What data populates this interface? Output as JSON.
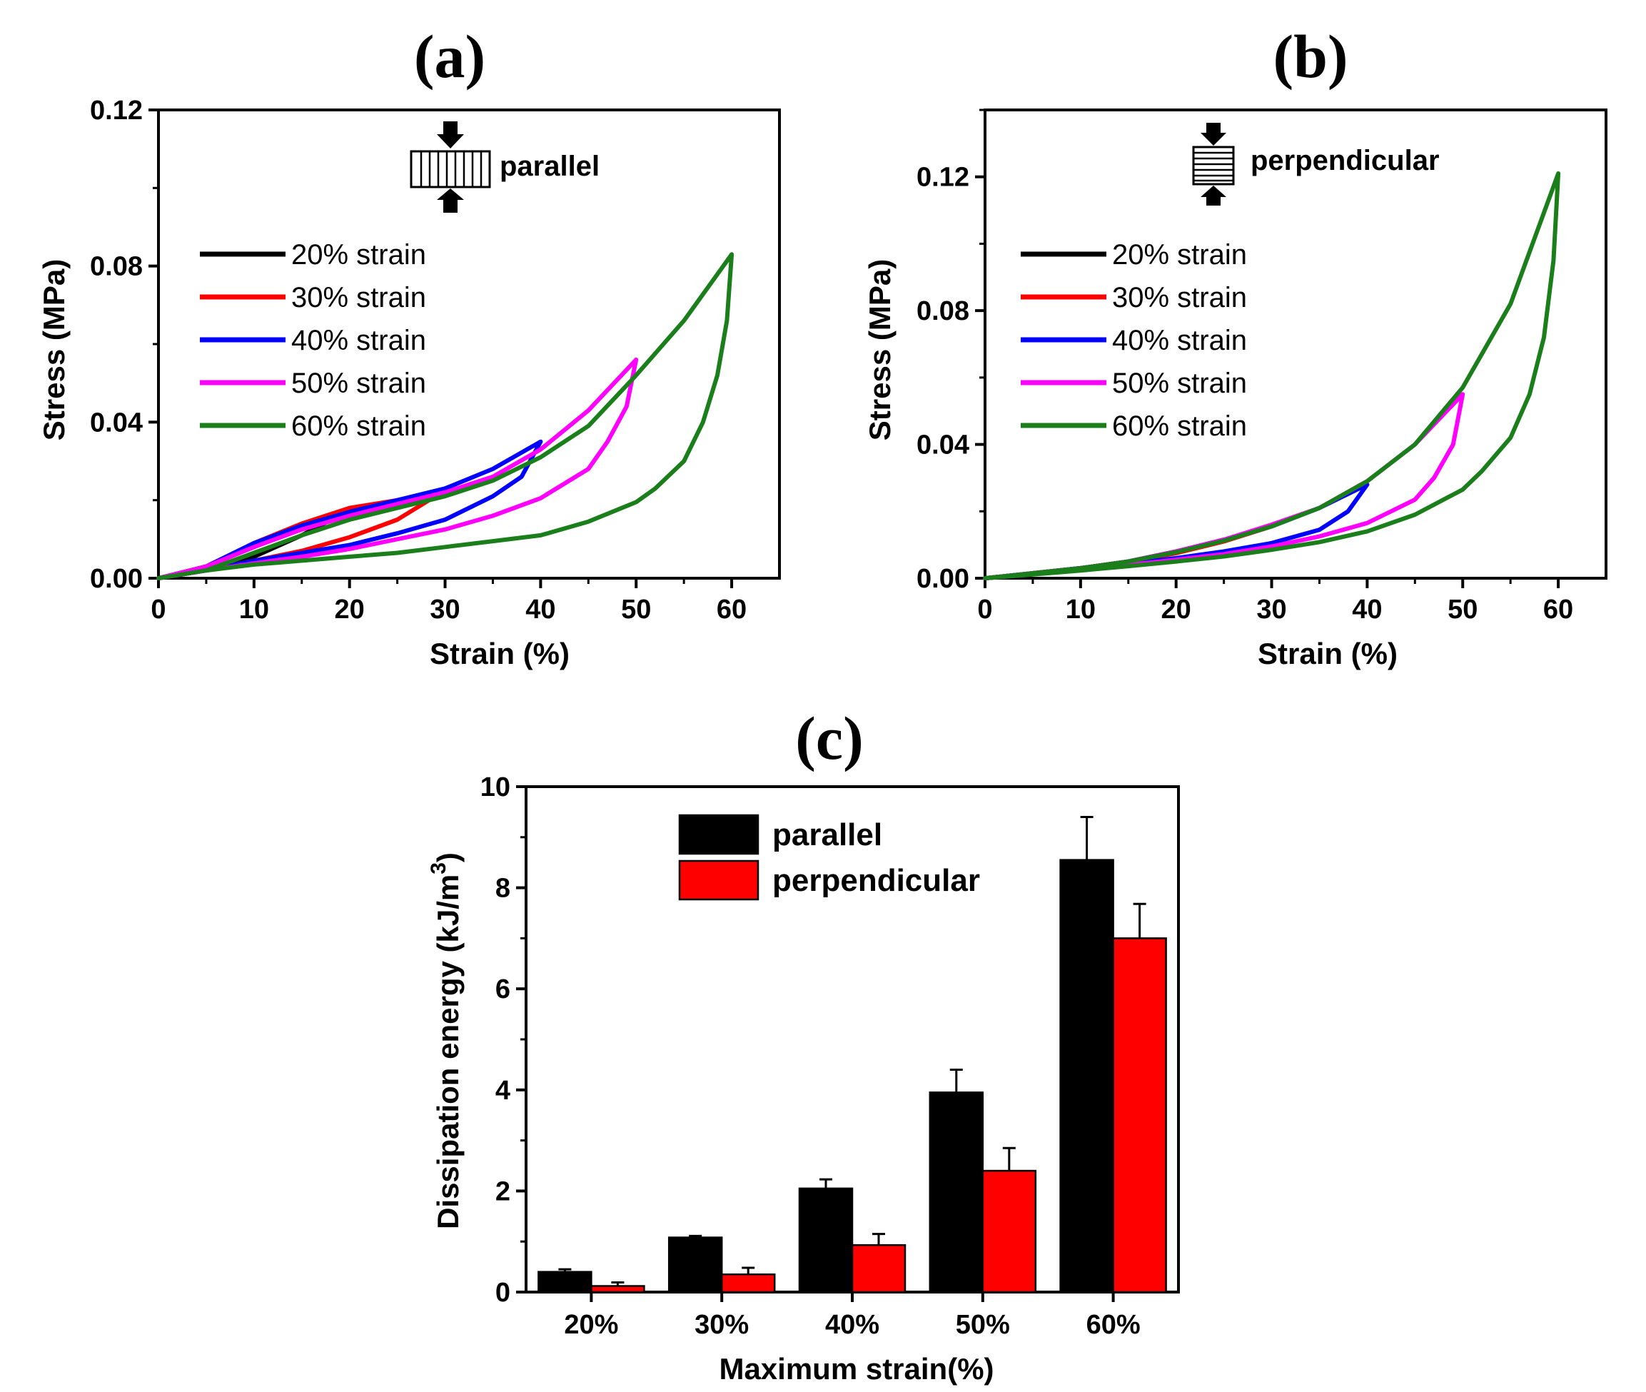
{
  "chart_data": [
    {
      "id": "a",
      "type": "line",
      "panel_label": "(a)",
      "title": "parallel",
      "xlabel": "Strain (%)",
      "ylabel": "Stress (MPa)",
      "xlim": [
        0,
        65
      ],
      "ylim": [
        0,
        0.12
      ],
      "xticks": [
        0,
        10,
        20,
        30,
        40,
        50,
        60
      ],
      "yticks": [
        0.0,
        0.04,
        0.08,
        0.12
      ],
      "legend_position": "center-left",
      "series": [
        {
          "name": "20% strain",
          "color": "#000000",
          "loading": [
            [
              0,
              0
            ],
            [
              5,
              0.003
            ],
            [
              10,
              0.008
            ],
            [
              15,
              0.013
            ],
            [
              20,
              0.0175
            ]
          ],
          "unloading": [
            [
              20,
              0.0175
            ],
            [
              15,
              0.011
            ],
            [
              10,
              0.0055
            ],
            [
              5,
              0.002
            ],
            [
              0,
              0
            ]
          ]
        },
        {
          "name": "30% strain",
          "color": "#ff0000",
          "loading": [
            [
              0,
              0
            ],
            [
              5,
              0.003
            ],
            [
              10,
              0.009
            ],
            [
              15,
              0.014
            ],
            [
              20,
              0.018
            ],
            [
              25,
              0.02
            ],
            [
              30,
              0.0225
            ]
          ],
          "unloading": [
            [
              30,
              0.0225
            ],
            [
              25,
              0.015
            ],
            [
              20,
              0.0105
            ],
            [
              15,
              0.007
            ],
            [
              10,
              0.0045
            ],
            [
              5,
              0.002
            ],
            [
              0,
              0
            ]
          ]
        },
        {
          "name": "40% strain",
          "color": "#0000ff",
          "loading": [
            [
              0,
              0
            ],
            [
              5,
              0.003
            ],
            [
              10,
              0.009
            ],
            [
              15,
              0.0135
            ],
            [
              20,
              0.017
            ],
            [
              25,
              0.02
            ],
            [
              30,
              0.023
            ],
            [
              35,
              0.028
            ],
            [
              40,
              0.035
            ]
          ],
          "unloading": [
            [
              40,
              0.035
            ],
            [
              38,
              0.026
            ],
            [
              35,
              0.021
            ],
            [
              30,
              0.015
            ],
            [
              25,
              0.0115
            ],
            [
              20,
              0.0085
            ],
            [
              15,
              0.0065
            ],
            [
              10,
              0.0045
            ],
            [
              5,
              0.002
            ],
            [
              0,
              0
            ]
          ]
        },
        {
          "name": "50% strain",
          "color": "#ff00ff",
          "loading": [
            [
              0,
              0
            ],
            [
              5,
              0.003
            ],
            [
              10,
              0.008
            ],
            [
              15,
              0.0125
            ],
            [
              20,
              0.016
            ],
            [
              25,
              0.019
            ],
            [
              30,
              0.022
            ],
            [
              35,
              0.026
            ],
            [
              40,
              0.033
            ],
            [
              45,
              0.043
            ],
            [
              50,
              0.056
            ]
          ],
          "unloading": [
            [
              50,
              0.056
            ],
            [
              49,
              0.044
            ],
            [
              47,
              0.035
            ],
            [
              45,
              0.028
            ],
            [
              40,
              0.0205
            ],
            [
              35,
              0.016
            ],
            [
              30,
              0.0125
            ],
            [
              25,
              0.01
            ],
            [
              20,
              0.0075
            ],
            [
              15,
              0.0055
            ],
            [
              10,
              0.0038
            ],
            [
              5,
              0.002
            ],
            [
              0,
              0
            ]
          ]
        },
        {
          "name": "60% strain",
          "color": "#1a7f1a",
          "loading": [
            [
              0,
              0
            ],
            [
              5,
              0.002
            ],
            [
              10,
              0.0065
            ],
            [
              15,
              0.011
            ],
            [
              20,
              0.015
            ],
            [
              25,
              0.018
            ],
            [
              30,
              0.021
            ],
            [
              35,
              0.025
            ],
            [
              40,
              0.031
            ],
            [
              45,
              0.039
            ],
            [
              50,
              0.052
            ],
            [
              55,
              0.066
            ],
            [
              60,
              0.083
            ]
          ],
          "unloading": [
            [
              60,
              0.083
            ],
            [
              59.5,
              0.066
            ],
            [
              58.5,
              0.052
            ],
            [
              57,
              0.04
            ],
            [
              55,
              0.03
            ],
            [
              52,
              0.023
            ],
            [
              50,
              0.0195
            ],
            [
              45,
              0.0145
            ],
            [
              40,
              0.011
            ],
            [
              35,
              0.0095
            ],
            [
              30,
              0.008
            ],
            [
              25,
              0.0065
            ],
            [
              20,
              0.0055
            ],
            [
              15,
              0.0045
            ],
            [
              10,
              0.0035
            ],
            [
              5,
              0.002
            ],
            [
              0,
              0
            ]
          ]
        }
      ]
    },
    {
      "id": "b",
      "type": "line",
      "panel_label": "(b)",
      "title": "perpendicular",
      "xlabel": "Strain (%)",
      "ylabel": "Stress (MPa)",
      "xlim": [
        0,
        65
      ],
      "ylim": [
        0,
        0.14
      ],
      "xticks": [
        0,
        10,
        20,
        30,
        40,
        50,
        60
      ],
      "yticks": [
        0.0,
        0.04,
        0.08,
        0.12
      ],
      "legend_position": "center-left",
      "series": [
        {
          "name": "20% strain",
          "color": "#000000",
          "loading": [
            [
              0,
              0
            ],
            [
              5,
              0.0015
            ],
            [
              10,
              0.003
            ],
            [
              15,
              0.005
            ],
            [
              20,
              0.008
            ]
          ],
          "unloading": [
            [
              20,
              0.008
            ],
            [
              15,
              0.005
            ],
            [
              10,
              0.0028
            ],
            [
              5,
              0.0012
            ],
            [
              0,
              0
            ]
          ]
        },
        {
          "name": "30% strain",
          "color": "#ff0000",
          "loading": [
            [
              0,
              0
            ],
            [
              5,
              0.0015
            ],
            [
              10,
              0.003
            ],
            [
              15,
              0.005
            ],
            [
              20,
              0.008
            ],
            [
              25,
              0.0115
            ],
            [
              30,
              0.0155
            ]
          ],
          "unloading": [
            [
              30,
              0.0155
            ],
            [
              25,
              0.011
            ],
            [
              20,
              0.0075
            ],
            [
              15,
              0.0048
            ],
            [
              10,
              0.0027
            ],
            [
              5,
              0.0012
            ],
            [
              0,
              0
            ]
          ]
        },
        {
          "name": "40% strain",
          "color": "#0000ff",
          "loading": [
            [
              0,
              0
            ],
            [
              5,
              0.0015
            ],
            [
              10,
              0.003
            ],
            [
              15,
              0.005
            ],
            [
              20,
              0.008
            ],
            [
              25,
              0.0115
            ],
            [
              30,
              0.0155
            ],
            [
              35,
              0.021
            ],
            [
              40,
              0.028
            ]
          ],
          "unloading": [
            [
              40,
              0.028
            ],
            [
              38,
              0.02
            ],
            [
              35,
              0.0145
            ],
            [
              30,
              0.0105
            ],
            [
              25,
              0.008
            ],
            [
              20,
              0.006
            ],
            [
              15,
              0.0043
            ],
            [
              10,
              0.0027
            ],
            [
              5,
              0.0012
            ],
            [
              0,
              0
            ]
          ]
        },
        {
          "name": "50% strain",
          "color": "#ff00ff",
          "loading": [
            [
              0,
              0
            ],
            [
              5,
              0.0015
            ],
            [
              10,
              0.003
            ],
            [
              15,
              0.005
            ],
            [
              20,
              0.008
            ],
            [
              25,
              0.0115
            ],
            [
              30,
              0.016
            ],
            [
              35,
              0.021
            ],
            [
              40,
              0.029
            ],
            [
              45,
              0.04
            ],
            [
              50,
              0.055
            ]
          ],
          "unloading": [
            [
              50,
              0.055
            ],
            [
              49,
              0.04
            ],
            [
              47,
              0.03
            ],
            [
              45,
              0.0235
            ],
            [
              40,
              0.0165
            ],
            [
              35,
              0.0125
            ],
            [
              30,
              0.0095
            ],
            [
              25,
              0.0072
            ],
            [
              20,
              0.0055
            ],
            [
              15,
              0.004
            ],
            [
              10,
              0.0025
            ],
            [
              5,
              0.0012
            ],
            [
              0,
              0
            ]
          ]
        },
        {
          "name": "60% strain",
          "color": "#1a7f1a",
          "loading": [
            [
              0,
              0
            ],
            [
              5,
              0.0015
            ],
            [
              10,
              0.003
            ],
            [
              15,
              0.005
            ],
            [
              20,
              0.0078
            ],
            [
              25,
              0.0112
            ],
            [
              30,
              0.0155
            ],
            [
              35,
              0.021
            ],
            [
              40,
              0.029
            ],
            [
              45,
              0.04
            ],
            [
              50,
              0.057
            ],
            [
              55,
              0.082
            ],
            [
              60,
              0.121
            ]
          ],
          "unloading": [
            [
              60,
              0.121
            ],
            [
              59.5,
              0.095
            ],
            [
              58.5,
              0.072
            ],
            [
              57,
              0.055
            ],
            [
              55,
              0.042
            ],
            [
              52,
              0.032
            ],
            [
              50,
              0.0265
            ],
            [
              45,
              0.019
            ],
            [
              40,
              0.014
            ],
            [
              35,
              0.0108
            ],
            [
              30,
              0.0085
            ],
            [
              25,
              0.0065
            ],
            [
              20,
              0.005
            ],
            [
              15,
              0.0036
            ],
            [
              10,
              0.0023
            ],
            [
              5,
              0.0011
            ],
            [
              0,
              0
            ]
          ]
        }
      ]
    },
    {
      "id": "c",
      "type": "bar",
      "panel_label": "(c)",
      "xlabel": "Maximum strain(%)",
      "ylabel_main": "Dissipation energy (kJ/m",
      "ylabel_sup": "3",
      "ylabel_end": ")",
      "ylim": [
        0,
        10
      ],
      "yticks": [
        0,
        2,
        4,
        6,
        8,
        10
      ],
      "categories": [
        "20%",
        "30%",
        "40%",
        "50%",
        "60%"
      ],
      "legend_position": "top-center",
      "series": [
        {
          "name": "parallel",
          "color": "#000000",
          "values": [
            0.4,
            1.08,
            2.05,
            3.95,
            8.55
          ],
          "errors": [
            0.05,
            0.03,
            0.18,
            0.45,
            0.85
          ]
        },
        {
          "name": "perpendicular",
          "color": "#ff0000",
          "values": [
            0.12,
            0.35,
            0.93,
            2.4,
            7.0
          ],
          "errors": [
            0.07,
            0.13,
            0.22,
            0.45,
            0.68
          ]
        }
      ]
    }
  ]
}
